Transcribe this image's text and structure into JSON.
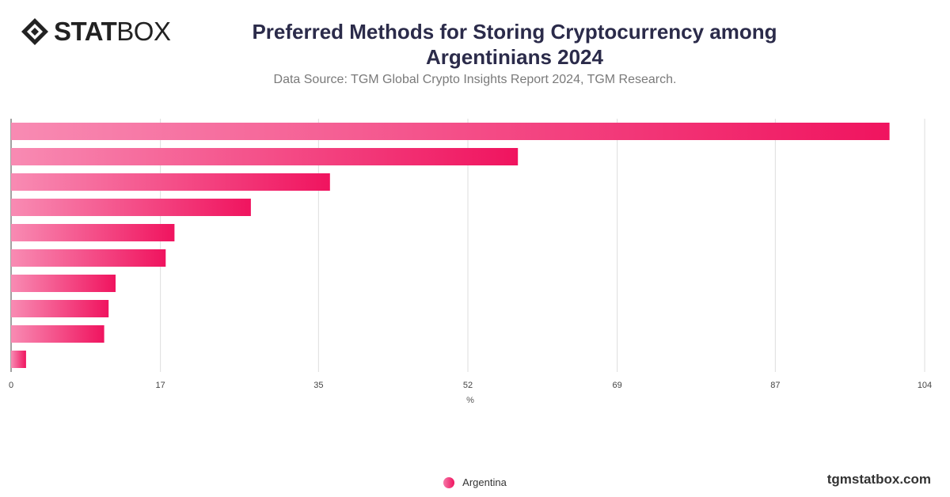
{
  "brand": {
    "logo_bold": "STAT",
    "logo_light": "BOX",
    "site": "tgmstatbox.com"
  },
  "colors": {
    "bar_start": "#f88bb3",
    "bar_end": "#f0145f",
    "title": "#2b2b4a"
  },
  "chart_data": {
    "type": "bar",
    "orientation": "horizontal",
    "title": "Preferred Methods for Storing Cryptocurrency among Argentinians 2024",
    "subtitle": "Data Source: TGM Global Crypto Insights Report 2024, TGM Research.",
    "xlabel": "%",
    "ylabel": "",
    "xlim": [
      0,
      104
    ],
    "x_ticks": [
      0,
      17,
      35,
      52,
      69,
      87,
      104
    ],
    "grid": true,
    "legend_position": "bottom",
    "categories": [
      "",
      "",
      "",
      "",
      "",
      "",
      "",
      "",
      "",
      ""
    ],
    "series": [
      {
        "name": "Argentina",
        "values": [
          100,
          57.7,
          36.3,
          27.3,
          18.6,
          17.6,
          11.9,
          11.1,
          10.6,
          1.7
        ]
      }
    ]
  }
}
